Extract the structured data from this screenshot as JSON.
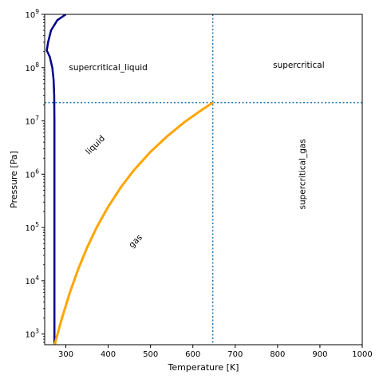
{
  "chart_data": {
    "type": "line",
    "xlabel": "Temperature [K]",
    "ylabel": "Pressure [Pa]",
    "xlim": [
      250,
      1000
    ],
    "ylim_log10": [
      2.8,
      9
    ],
    "y_scale": "log",
    "x_ticks": [
      300,
      400,
      500,
      600,
      700,
      800,
      900,
      1000
    ],
    "x_tick_labels": [
      "300",
      "400",
      "500",
      "600",
      "700",
      "800",
      "900",
      "1000"
    ],
    "y_ticks_log10": [
      3,
      4,
      5,
      6,
      7,
      8,
      9
    ],
    "y_tick_labels": [
      {
        "base": "10",
        "exp": "3"
      },
      {
        "base": "10",
        "exp": "4"
      },
      {
        "base": "10",
        "exp": "5"
      },
      {
        "base": "10",
        "exp": "6"
      },
      {
        "base": "10",
        "exp": "7"
      },
      {
        "base": "10",
        "exp": "8"
      },
      {
        "base": "10",
        "exp": "9"
      }
    ],
    "grid": false,
    "series": [
      {
        "color": "#00008b",
        "points": [
          {
            "T": 273,
            "P": 611
          },
          {
            "T": 273,
            "P": 1000
          },
          {
            "T": 273,
            "P": 100000
          },
          {
            "T": 273,
            "P": 10000000
          },
          {
            "T": 272.5,
            "P": 30000000
          },
          {
            "T": 271,
            "P": 60000000
          },
          {
            "T": 268,
            "P": 100000000
          },
          {
            "T": 262,
            "P": 160000000
          },
          {
            "T": 255,
            "P": 210000000
          },
          {
            "T": 258,
            "P": 300000000
          },
          {
            "T": 265,
            "P": 500000000
          },
          {
            "T": 280,
            "P": 780000000
          },
          {
            "T": 300,
            "P": 1000000000
          }
        ]
      },
      {
        "color": "#ffa500",
        "points": [
          {
            "T": 273,
            "P": 611
          },
          {
            "T": 290,
            "P": 1900
          },
          {
            "T": 310,
            "P": 6200
          },
          {
            "T": 330,
            "P": 17200
          },
          {
            "T": 350,
            "P": 41700
          },
          {
            "T": 373,
            "P": 101325
          },
          {
            "T": 400,
            "P": 245000
          },
          {
            "T": 430,
            "P": 570000
          },
          {
            "T": 460,
            "P": 1170000
          },
          {
            "T": 500,
            "P": 2640000
          },
          {
            "T": 540,
            "P": 5200000
          },
          {
            "T": 580,
            "P": 9500000
          },
          {
            "T": 620,
            "P": 15900000
          },
          {
            "T": 647,
            "P": 22060000
          }
        ]
      }
    ],
    "critical_lines": {
      "T": 647,
      "P": 22060000,
      "color": "#1f77b4"
    },
    "annotations": [
      {
        "text": "supercritical_liquid",
        "T": 400,
        "P": 100000000,
        "rotation": 0
      },
      {
        "text": "supercritical",
        "T": 850,
        "P": 110000000,
        "rotation": 0
      },
      {
        "text": "liquid",
        "T": 370,
        "P": 3500000,
        "rotation": -45
      },
      {
        "text": "gas",
        "T": 465,
        "P": 55000,
        "rotation": -45
      },
      {
        "text": "supercritical_gas",
        "T": 860,
        "P": 1000000,
        "rotation": -90
      }
    ]
  }
}
